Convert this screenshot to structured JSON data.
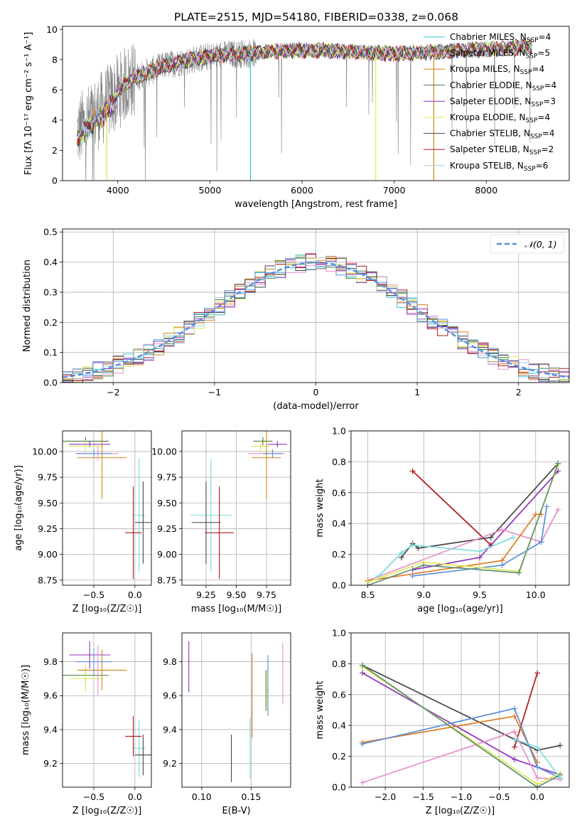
{
  "title": "PLATE=2515, MJD=54180, FIBERID=0338, z=0.068",
  "colors": {
    "miles_chab": "#2ec4d4",
    "miles_salp": "#e58fc9",
    "miles_krou": "#d4861a",
    "elodie_chab": "#4c7a3a",
    "elodie_salp": "#8e30b8",
    "elodie_krou": "#dce85a",
    "stelib_chab": "#454545",
    "stelib_salp": "#b01818",
    "stelib_krou": "#aac8ee",
    "data": "#808080",
    "gauss": "#5b8fd9",
    "alt_blue": "#5b8fd9",
    "alt_green": "#60906a",
    "alt_orange": "#e07a20",
    "alt_cyan": "#7adcdc"
  },
  "chart_data": [
    {
      "id": "spectrum",
      "type": "line",
      "xlabel": "wavelength [Angstrom, rest frame]",
      "ylabel": "Flux [fλ 10⁻¹⁷ erg cm⁻² s⁻¹ A⁻¹]",
      "xlim": [
        3400,
        8900
      ],
      "ylim": [
        0,
        10.2
      ],
      "xticks": [
        4000,
        5000,
        6000,
        7000,
        8000
      ],
      "yticks": [
        0,
        2,
        4,
        6,
        8,
        10
      ],
      "continuum": [
        [
          3560,
          3.2
        ],
        [
          3700,
          4.0
        ],
        [
          3900,
          5.2
        ],
        [
          4100,
          6.5
        ],
        [
          4300,
          7.1
        ],
        [
          4500,
          7.6
        ],
        [
          4800,
          8.0
        ],
        [
          5100,
          8.3
        ],
        [
          5400,
          8.4
        ],
        [
          5800,
          8.6
        ],
        [
          6200,
          8.6
        ],
        [
          6600,
          8.5
        ],
        [
          7000,
          8.4
        ],
        [
          7400,
          8.5
        ],
        [
          7700,
          8.6
        ],
        [
          8100,
          8.7
        ],
        [
          8500,
          8.9
        ]
      ],
      "legend": [
        {
          "label": "Chabrier MILES, N",
          "sub": "SSP",
          "val": "=4",
          "color": "miles_chab"
        },
        {
          "label": "Salpeter MILES, N",
          "sub": "SSP",
          "val": "=5",
          "color": "miles_salp"
        },
        {
          "label": "Kroupa MILES, N",
          "sub": "SSP",
          "val": "=4",
          "color": "miles_krou"
        },
        {
          "label": "Chabrier ELODIE, N",
          "sub": "SSP",
          "val": "=4",
          "color": "elodie_chab"
        },
        {
          "label": "Salpeter ELODIE, N",
          "sub": "SSP",
          "val": "=3",
          "color": "elodie_salp"
        },
        {
          "label": "Kroupa ELODIE, N",
          "sub": "SSP",
          "val": "=4",
          "color": "elodie_krou"
        },
        {
          "label": "Chabrier STELIB, N",
          "sub": "SSP",
          "val": "=4",
          "color": "stelib_chab"
        },
        {
          "label": "Salpeter STELIB, N",
          "sub": "SSP",
          "val": "=2",
          "color": "stelib_salp"
        },
        {
          "label": "Kroupa STELIB, N",
          "sub": "SSP",
          "val": "=6",
          "color": "stelib_krou"
        }
      ],
      "legend_placement": "right"
    },
    {
      "id": "residuals",
      "type": "line",
      "xlabel": "(data-model)/error",
      "ylabel": "Normed distribution",
      "xlim": [
        -2.5,
        2.5
      ],
      "ylim": [
        0,
        0.51
      ],
      "xticks": [
        -2,
        -1,
        0,
        1,
        2
      ],
      "yticks": [
        0.0,
        0.1,
        0.2,
        0.3,
        0.4,
        0.5
      ],
      "grid": true,
      "legend": "𝒩(0, 1)",
      "legend_placement": "top-right"
    },
    {
      "id": "age_vs_Z",
      "type": "scatter",
      "xlabel": "Z [log₁₀(Z/Z☉)]",
      "ylabel": "age  [log₁₀(age/yr)]",
      "xlim": [
        -0.88,
        0.2
      ],
      "ylim": [
        8.7,
        10.2
      ],
      "xticks": [
        -0.5,
        0.0
      ],
      "yticks": [
        8.75,
        9.0,
        9.25,
        9.5,
        9.75,
        10.0
      ],
      "grid": true,
      "points": [
        {
          "x": -0.6,
          "xerr": 0.28,
          "y": 10.1,
          "yerr": 0.04,
          "c": "elodie_chab"
        },
        {
          "x": -0.55,
          "xerr": 0.25,
          "y": 10.07,
          "yerr": 0.03,
          "c": "elodie_salp"
        },
        {
          "x": -0.6,
          "xerr": 0.2,
          "y": 10.05,
          "yerr": 0.06,
          "c": "elodie_krou"
        },
        {
          "x": -0.45,
          "xerr": 0.25,
          "y": 9.98,
          "yerr": 0.07,
          "c": "miles_salp"
        },
        {
          "x": -0.4,
          "xerr": 0.3,
          "y": 9.94,
          "yerr": 0.4,
          "c": "miles_krou"
        },
        {
          "x": -0.5,
          "xerr": 0.22,
          "y": 9.98,
          "yerr": 0.04,
          "c": "alt_blue"
        },
        {
          "x": 0.05,
          "xerr": 0.08,
          "y": 9.38,
          "yerr": 0.55,
          "c": "alt_cyan"
        },
        {
          "x": 0.1,
          "xerr": 0.1,
          "y": 9.31,
          "yerr": 0.4,
          "c": "stelib_chab"
        },
        {
          "x": -0.02,
          "xerr": 0.1,
          "y": 9.21,
          "yerr": 0.45,
          "c": "stelib_salp"
        }
      ]
    },
    {
      "id": "age_vs_mass",
      "type": "scatter",
      "xlabel": "mass [log₁₀(M/M☉)]",
      "ylabel": "",
      "xlim": [
        9.05,
        9.95
      ],
      "ylim": [
        8.7,
        10.2
      ],
      "xticks": [
        9.25,
        9.5,
        9.75
      ],
      "yticks": [
        8.75,
        9.0,
        9.25,
        9.5,
        9.75,
        10.0
      ],
      "grid": true,
      "points": [
        {
          "x": 9.72,
          "xerr": 0.08,
          "y": 10.1,
          "yerr": 0.04,
          "c": "elodie_chab"
        },
        {
          "x": 9.84,
          "xerr": 0.08,
          "y": 10.07,
          "yerr": 0.03,
          "c": "elodie_salp"
        },
        {
          "x": 9.7,
          "xerr": 0.08,
          "y": 10.05,
          "yerr": 0.06,
          "c": "elodie_krou"
        },
        {
          "x": 9.75,
          "xerr": 0.15,
          "y": 9.98,
          "yerr": 0.07,
          "c": "miles_salp"
        },
        {
          "x": 9.75,
          "xerr": 0.12,
          "y": 9.94,
          "yerr": 0.4,
          "c": "miles_krou"
        },
        {
          "x": 9.8,
          "xerr": 0.08,
          "y": 9.98,
          "yerr": 0.04,
          "c": "alt_blue"
        },
        {
          "x": 9.29,
          "xerr": 0.17,
          "y": 9.38,
          "yerr": 0.55,
          "c": "alt_cyan"
        },
        {
          "x": 9.25,
          "xerr": 0.12,
          "y": 9.31,
          "yerr": 0.4,
          "c": "stelib_chab"
        },
        {
          "x": 9.36,
          "xerr": 0.12,
          "y": 9.21,
          "yerr": 0.45,
          "c": "stelib_salp"
        }
      ]
    },
    {
      "id": "weight_vs_age",
      "type": "line",
      "xlabel": "age  [log₁₀(age/yr)]",
      "ylabel": "mass weight",
      "xlim": [
        8.35,
        10.3
      ],
      "ylim": [
        0,
        1.0
      ],
      "xticks": [
        8.5,
        9.0,
        9.5,
        10.0
      ],
      "yticks": [
        0.0,
        0.2,
        0.4,
        0.6,
        0.8,
        1.0
      ],
      "grid": true,
      "series": [
        {
          "c": "stelib_salp",
          "x": [
            8.9,
            9.6
          ],
          "y": [
            0.74,
            0.26
          ]
        },
        {
          "c": "stelib_chab",
          "x": [
            8.8,
            8.9,
            8.95,
            9.6,
            10.2
          ],
          "y": [
            0.18,
            0.27,
            0.24,
            0.31,
            0.79
          ]
        },
        {
          "c": "elodie_salp",
          "x": [
            8.9,
            9.5,
            10.2
          ],
          "y": [
            0.1,
            0.18,
            0.74
          ]
        },
        {
          "c": "miles_salp",
          "x": [
            8.5,
            9.7,
            10.05,
            10.2
          ],
          "y": [
            0.03,
            0.36,
            0.28,
            0.49
          ]
        },
        {
          "c": "alt_orange",
          "x": [
            8.5,
            9.7,
            10.0,
            10.05
          ],
          "y": [
            0.03,
            0.16,
            0.46,
            0.46
          ]
        },
        {
          "c": "alt_blue",
          "x": [
            8.9,
            9.7,
            10.05,
            10.1
          ],
          "y": [
            0.06,
            0.13,
            0.28,
            0.51
          ]
        },
        {
          "c": "elodie_krou",
          "x": [
            8.5,
            9.0,
            9.85,
            10.2
          ],
          "y": [
            0.02,
            0.15,
            0.09,
            0.78
          ]
        },
        {
          "c": "alt_green",
          "x": [
            8.5,
            9.0,
            9.85,
            10.2
          ],
          "y": [
            0.0,
            0.13,
            0.08,
            0.79
          ]
        },
        {
          "c": "alt_cyan",
          "x": [
            8.6,
            8.8,
            8.9,
            9.5,
            9.8
          ],
          "y": [
            0.06,
            0.21,
            0.26,
            0.22,
            0.31
          ]
        }
      ]
    },
    {
      "id": "mass_vs_Z",
      "type": "scatter",
      "xlabel": "Z [log₁₀(Z/Z☉)]",
      "ylabel": "mass [log₁₀(M/M☉)]",
      "xlim": [
        -0.88,
        0.2
      ],
      "ylim": [
        9.06,
        9.97
      ],
      "xticks": [
        -0.5,
        0.0
      ],
      "yticks": [
        9.2,
        9.4,
        9.6,
        9.8
      ],
      "grid": true,
      "points": [
        {
          "x": -0.6,
          "xerr": 0.28,
          "y": 9.72,
          "yerr": 0.05,
          "c": "elodie_chab"
        },
        {
          "x": -0.55,
          "xerr": 0.25,
          "y": 9.84,
          "yerr": 0.08,
          "c": "elodie_salp"
        },
        {
          "x": -0.6,
          "xerr": 0.2,
          "y": 9.7,
          "yerr": 0.08,
          "c": "elodie_krou"
        },
        {
          "x": -0.45,
          "xerr": 0.25,
          "y": 9.75,
          "yerr": 0.15,
          "c": "miles_salp"
        },
        {
          "x": -0.4,
          "xerr": 0.3,
          "y": 9.75,
          "yerr": 0.12,
          "c": "miles_krou"
        },
        {
          "x": -0.5,
          "xerr": 0.22,
          "y": 9.8,
          "yerr": 0.08,
          "c": "alt_blue"
        },
        {
          "x": 0.05,
          "xerr": 0.08,
          "y": 9.29,
          "yerr": 0.17,
          "c": "alt_cyan"
        },
        {
          "x": 0.1,
          "xerr": 0.1,
          "y": 9.25,
          "yerr": 0.12,
          "c": "stelib_chab"
        },
        {
          "x": -0.02,
          "xerr": 0.1,
          "y": 9.36,
          "yerr": 0.12,
          "c": "stelib_salp"
        }
      ]
    },
    {
      "id": "mass_vs_ebv",
      "type": "scatter",
      "xlabel": "E(B-V)",
      "ylabel": "",
      "xlim": [
        0.08,
        0.19
      ],
      "ylim": [
        9.06,
        9.97
      ],
      "xticks": [
        0.1,
        0.15
      ],
      "yticks": [
        9.2,
        9.4,
        9.6,
        9.8
      ],
      "grid": true,
      "points": [
        {
          "x": 0.087,
          "xerr": 0,
          "y": 9.77,
          "yerr": 0.15,
          "c": "elodie_salp"
        },
        {
          "x": 0.13,
          "xerr": 0,
          "y": 9.23,
          "yerr": 0.14,
          "c": "stelib_chab"
        },
        {
          "x": 0.149,
          "xerr": 0,
          "y": 9.29,
          "yerr": 0.18,
          "c": "alt_cyan"
        },
        {
          "x": 0.151,
          "xerr": 0,
          "y": 9.6,
          "yerr": 0.25,
          "c": "alt_orange"
        },
        {
          "x": 0.165,
          "xerr": 0,
          "y": 9.63,
          "yerr": 0.12,
          "c": "alt_green"
        },
        {
          "x": 0.166,
          "xerr": 0,
          "y": 9.63,
          "yerr": 0.12,
          "c": "elodie_krou"
        },
        {
          "x": 0.167,
          "xerr": 0,
          "y": 9.66,
          "yerr": 0.18,
          "c": "alt_blue"
        },
        {
          "x": 0.182,
          "xerr": 0,
          "y": 9.73,
          "yerr": 0.18,
          "c": "miles_salp"
        }
      ]
    },
    {
      "id": "weight_vs_Z",
      "type": "line",
      "xlabel": "Z [log₁₀(Z/Z☉)]",
      "ylabel": "mass weight",
      "xlim": [
        -2.45,
        0.42
      ],
      "ylim": [
        0,
        1.0
      ],
      "xticks": [
        -2.0,
        -1.5,
        -1.0,
        -0.5,
        0.0
      ],
      "yticks": [
        0.0,
        0.2,
        0.4,
        0.6,
        0.8,
        1.0
      ],
      "grid": true,
      "series": [
        {
          "c": "stelib_salp",
          "x": [
            -0.3,
            0.0
          ],
          "y": [
            0.26,
            0.74
          ]
        },
        {
          "c": "stelib_chab",
          "x": [
            -2.3,
            -0.3,
            0.0,
            0.3
          ],
          "y": [
            0.79,
            0.31,
            0.24,
            0.27
          ]
        },
        {
          "c": "elodie_salp",
          "x": [
            -2.3,
            -0.3,
            0.3
          ],
          "y": [
            0.74,
            0.18,
            0.08
          ]
        },
        {
          "c": "miles_salp",
          "x": [
            -2.3,
            -0.3,
            0.0,
            0.3
          ],
          "y": [
            0.03,
            0.36,
            0.06,
            0.05
          ]
        },
        {
          "c": "alt_orange",
          "x": [
            -2.3,
            -0.3,
            0.0
          ],
          "y": [
            0.29,
            0.46,
            0.16
          ]
        },
        {
          "c": "alt_blue",
          "x": [
            -2.3,
            -0.3,
            0.0,
            0.3
          ],
          "y": [
            0.28,
            0.51,
            0.13,
            0.06
          ]
        },
        {
          "c": "elodie_krou",
          "x": [
            -2.3,
            0.0,
            0.3
          ],
          "y": [
            0.78,
            0.02,
            0.09
          ]
        },
        {
          "c": "alt_green",
          "x": [
            -2.3,
            0.0,
            0.3
          ],
          "y": [
            0.79,
            0.0,
            0.08
          ]
        },
        {
          "c": "alt_cyan",
          "x": [
            -0.3,
            0.0,
            0.3
          ],
          "y": [
            0.31,
            0.26,
            0.06
          ]
        }
      ]
    }
  ]
}
